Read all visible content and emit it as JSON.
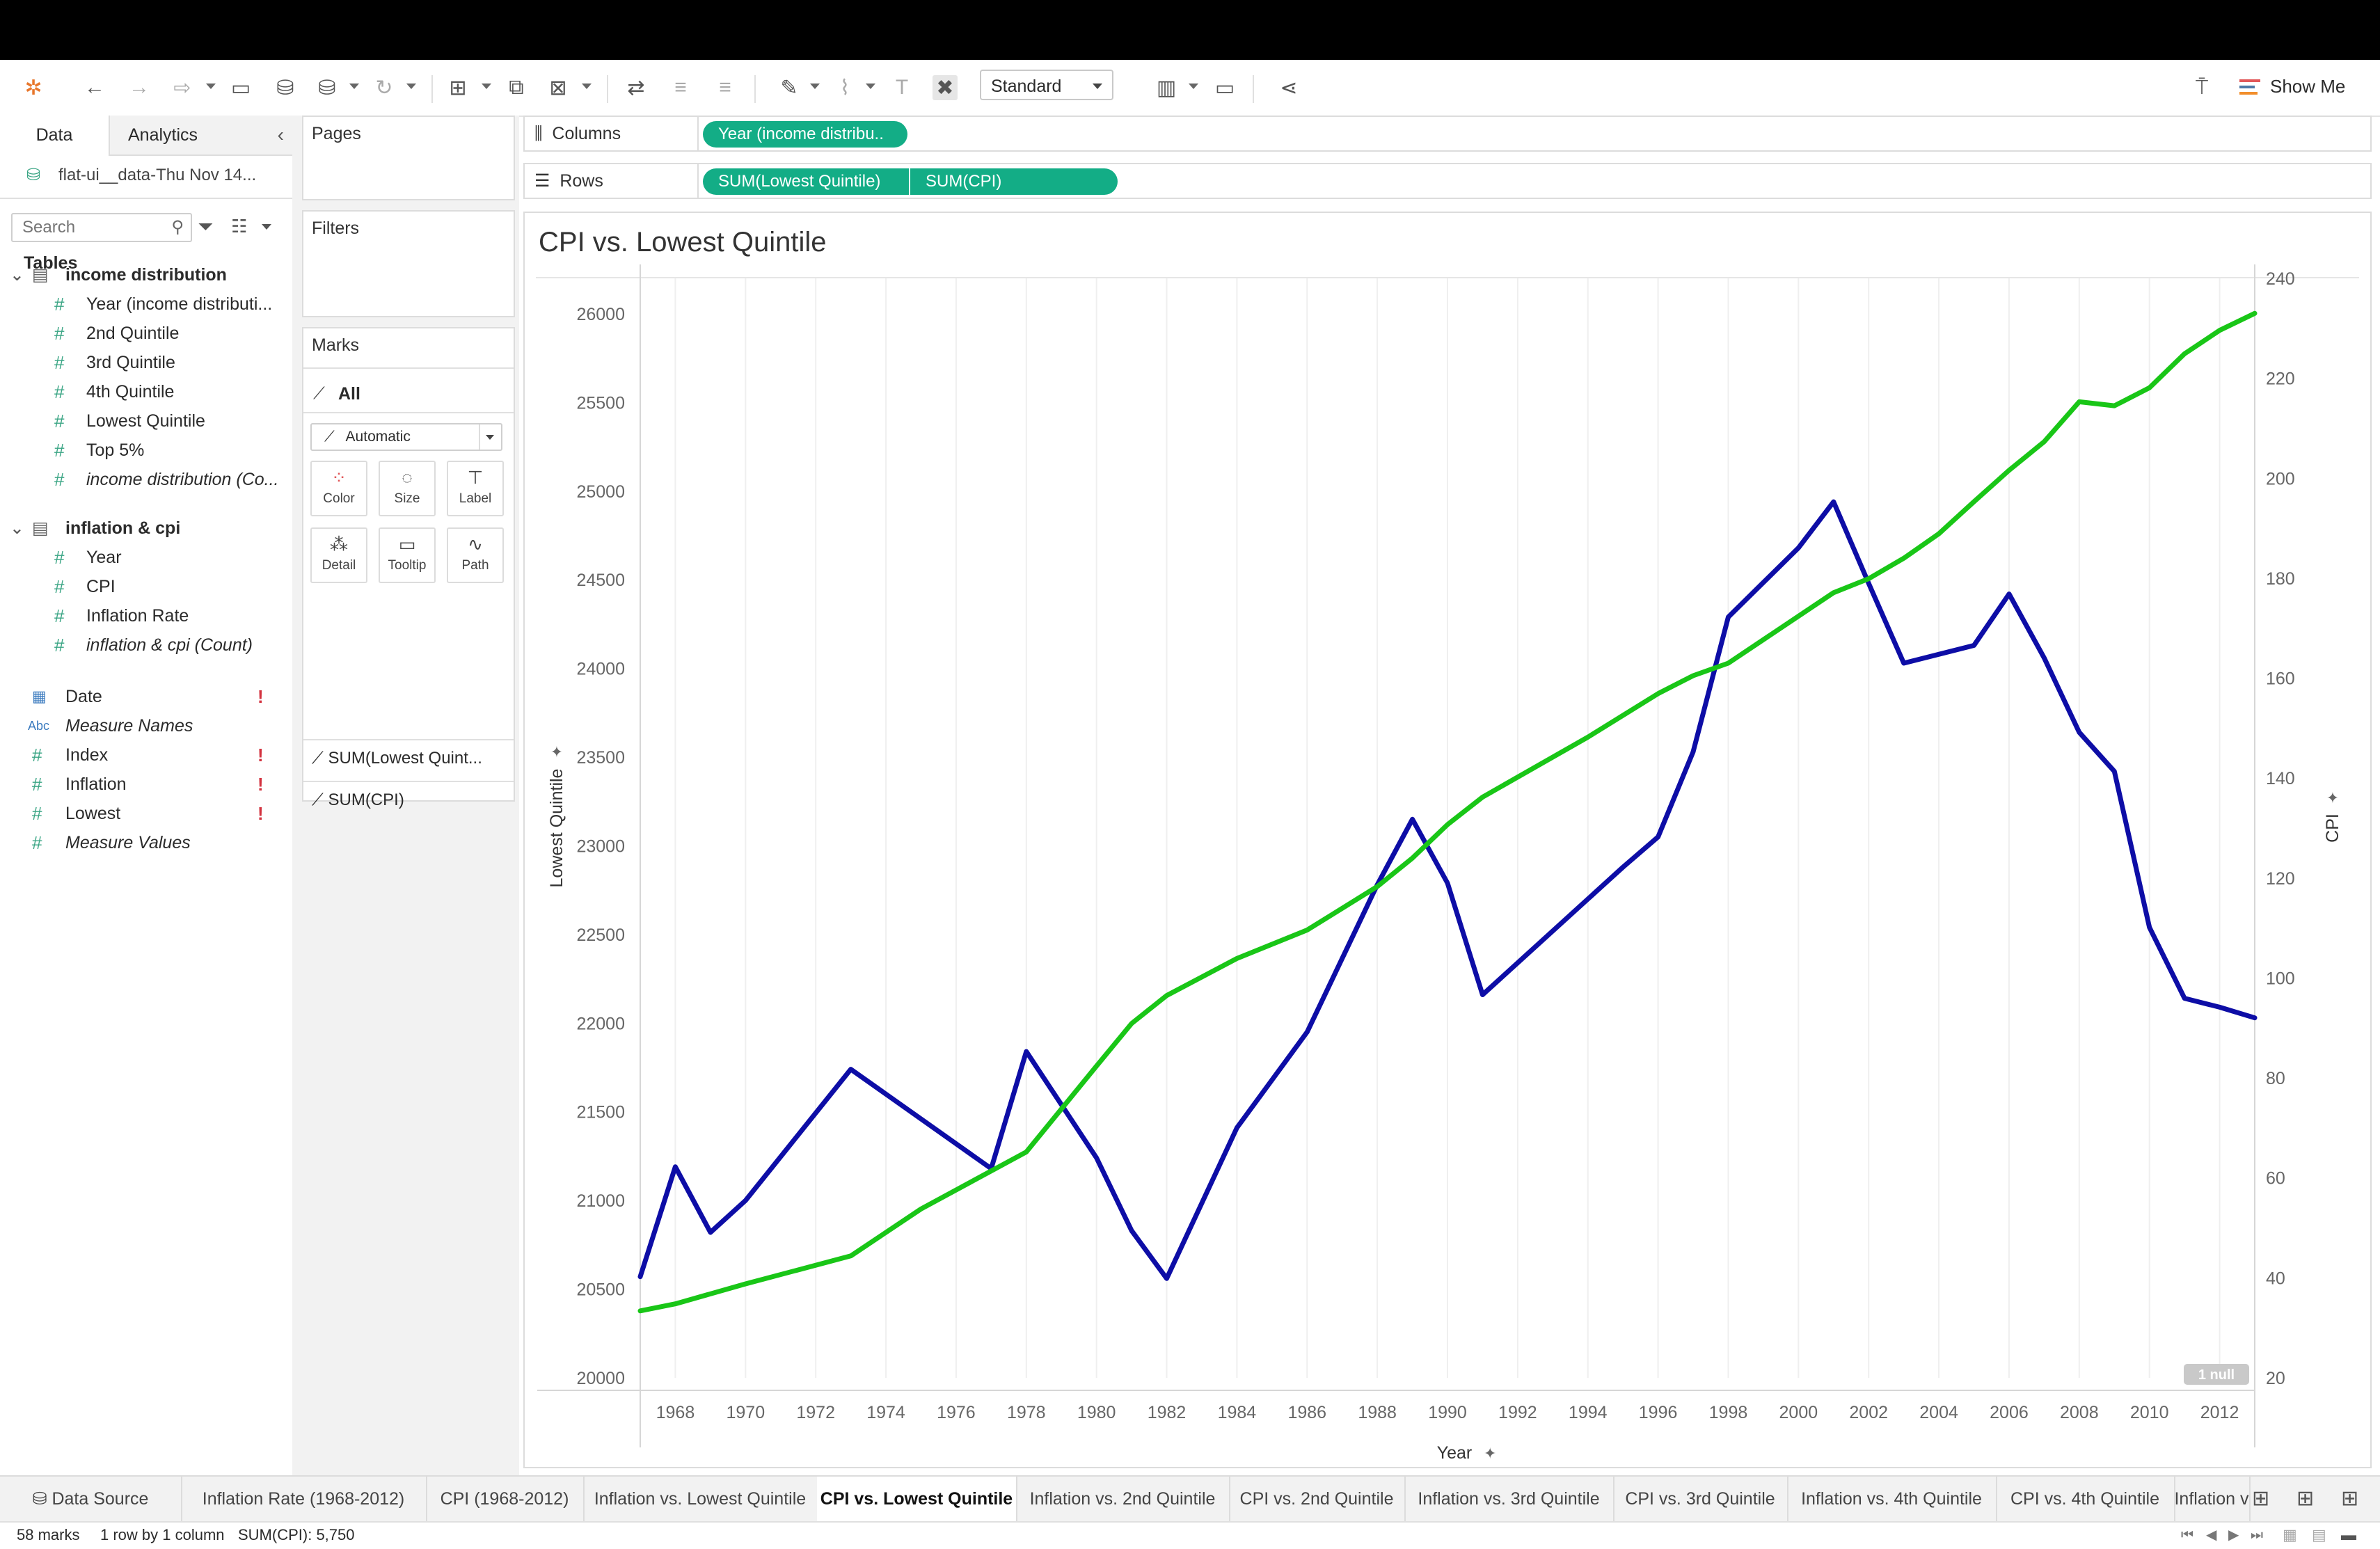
{
  "toolbar": {
    "view_mode": "Standard",
    "show_me_label": "Show Me",
    "icons": [
      "tableau-logo-icon",
      "undo-icon",
      "redo-icon",
      "forward-icon",
      "save-icon",
      "new-datasource-icon",
      "pause-update-icon",
      "refresh-icon",
      "new-worksheet-icon",
      "duplicate-icon",
      "clear-sheet-icon",
      "swap-axes-icon",
      "sort-asc-icon",
      "sort-desc-icon",
      "highlight-icon",
      "group-icon",
      "label-icon",
      "fix-axes-icon",
      "fit-icon",
      "presentation-icon",
      "share-icon",
      "pin-icon"
    ]
  },
  "data_pane": {
    "tab_data": "Data",
    "tab_analytics": "Analytics",
    "datasource": "flat-ui__data-Thu Nov 14...",
    "search_placeholder": "Search",
    "tables_label": "Tables",
    "groups": [
      {
        "name": "income distribution",
        "fields": [
          {
            "label": "Year (income distributi...",
            "italic": false
          },
          {
            "label": "2nd Quintile",
            "italic": false
          },
          {
            "label": "3rd Quintile",
            "italic": false
          },
          {
            "label": "4th Quintile",
            "italic": false
          },
          {
            "label": "Lowest Quintile",
            "italic": false
          },
          {
            "label": "Top 5%",
            "italic": false
          },
          {
            "label": "income distribution (Co...",
            "italic": true
          }
        ]
      },
      {
        "name": "inflation & cpi",
        "fields": [
          {
            "label": "Year",
            "italic": false
          },
          {
            "label": "CPI",
            "italic": false
          },
          {
            "label": "Inflation Rate",
            "italic": false
          },
          {
            "label": "inflation & cpi (Count)",
            "italic": true
          }
        ]
      }
    ],
    "loose_fields": [
      {
        "label": "Date",
        "type": "date",
        "warn": "!"
      },
      {
        "label": "Measure Names",
        "type": "abc",
        "italic": true
      },
      {
        "label": "Index",
        "type": "num",
        "warn": "!"
      },
      {
        "label": "Inflation",
        "type": "num",
        "warn": "!"
      },
      {
        "label": "Lowest",
        "type": "num",
        "warn": "!"
      },
      {
        "label": "Measure Values",
        "type": "num",
        "italic": true
      }
    ]
  },
  "shelves": {
    "pages_label": "Pages",
    "filters_label": "Filters",
    "marks_label": "Marks",
    "marks_all": "All",
    "mark_type": "Automatic",
    "mark_buttons": [
      "Color",
      "Size",
      "Label",
      "Detail",
      "Tooltip",
      "Path"
    ],
    "mark_cards": [
      "SUM(Lowest Quint...",
      "SUM(CPI)"
    ],
    "columns_label": "Columns",
    "rows_label": "Rows",
    "columns_pills": [
      "Year (income distribu.."
    ],
    "rows_pills": [
      "SUM(Lowest Quintile)",
      "SUM(CPI)"
    ]
  },
  "colors": {
    "pill": "#13ad86",
    "lowest_line": "#0d0da6",
    "cpi_line": "#19c617"
  },
  "chart_data": {
    "type": "line",
    "title": "CPI vs. Lowest Quintile",
    "xlabel": "Year",
    "ylabel_left": "Lowest Quintile",
    "ylabel_right": "CPI",
    "x_ticks": [
      "1968",
      "1970",
      "1972",
      "1974",
      "1976",
      "1978",
      "1980",
      "1982",
      "1984",
      "1986",
      "1988",
      "1990",
      "1992",
      "1994",
      "1996",
      "1998",
      "2000",
      "2002",
      "2004",
      "2006",
      "2008",
      "2010",
      "2012"
    ],
    "y_left_ticks": [
      "20000",
      "20500",
      "21000",
      "21500",
      "22000",
      "22500",
      "23000",
      "23500",
      "24000",
      "24500",
      "25000",
      "25500",
      "26000"
    ],
    "y_right_ticks": [
      "20",
      "40",
      "60",
      "80",
      "100",
      "120",
      "140",
      "160",
      "180",
      "200",
      "220",
      "240"
    ],
    "xlim": [
      1967,
      2013
    ],
    "ylim_left": [
      20000,
      26200
    ],
    "ylim_right": [
      20,
      240
    ],
    "null_indicator": "1 null",
    "series": [
      {
        "name": "SUM(Lowest Quintile)",
        "axis": "left",
        "x": [
          1967,
          1968,
          1969,
          1970,
          1973,
          1977,
          1978,
          1980,
          1981,
          1982,
          1984,
          1986,
          1988,
          1989,
          1990,
          1991,
          1993,
          1995,
          1996,
          1997,
          1998,
          2000,
          2001,
          2002,
          2003,
          2005,
          2006,
          2007,
          2008,
          2009,
          2010,
          2011,
          2012,
          2013
        ],
        "values": [
          20570,
          21190,
          20820,
          21000,
          21740,
          21180,
          21840,
          21240,
          20830,
          20560,
          21410,
          21950,
          22780,
          23150,
          22790,
          22160,
          22520,
          22880,
          23050,
          23530,
          24290,
          24680,
          24940,
          24480,
          24030,
          24130,
          24420,
          24060,
          23640,
          23420,
          22540,
          22140,
          22090,
          22030
        ]
      },
      {
        "name": "SUM(CPI)",
        "axis": "right",
        "x": [
          1967,
          1968,
          1970,
          1973,
          1975,
          1978,
          1980,
          1981,
          1982,
          1984,
          1986,
          1988,
          1989,
          1990,
          1991,
          1994,
          1996,
          1997,
          1998,
          2001,
          2002,
          2003,
          2004,
          2005,
          2006,
          2007,
          2008,
          2009,
          2010,
          2011,
          2012,
          2013
        ],
        "values": [
          33.4,
          34.8,
          38.8,
          44.4,
          53.8,
          65.2,
          82.4,
          90.9,
          96.5,
          103.9,
          109.6,
          118.3,
          124.0,
          130.7,
          136.2,
          148.2,
          156.9,
          160.5,
          163.0,
          177.1,
          179.9,
          184.0,
          188.9,
          195.3,
          201.6,
          207.3,
          215.3,
          214.5,
          218.1,
          224.9,
          229.6,
          233.0
        ]
      }
    ]
  },
  "sheet_tabs": {
    "data_source": "Data Source",
    "tabs": [
      "Inflation Rate (1968-2012)",
      "CPI (1968-2012)",
      "Inflation vs. Lowest Quintile",
      "CPI vs. Lowest Quintile",
      "Inflation vs. 2nd Quintile",
      "CPI vs. 2nd Quintile",
      "Inflation vs. 3rd Quintile",
      "CPI vs. 3rd Quintile",
      "Inflation vs. 4th Quintile",
      "CPI vs. 4th Quintile",
      "Inflation v"
    ],
    "active_index": 3
  },
  "status": {
    "marks": "58 marks",
    "layout": "1 row by 1 column",
    "sum": "SUM(CPI): 5,750"
  }
}
